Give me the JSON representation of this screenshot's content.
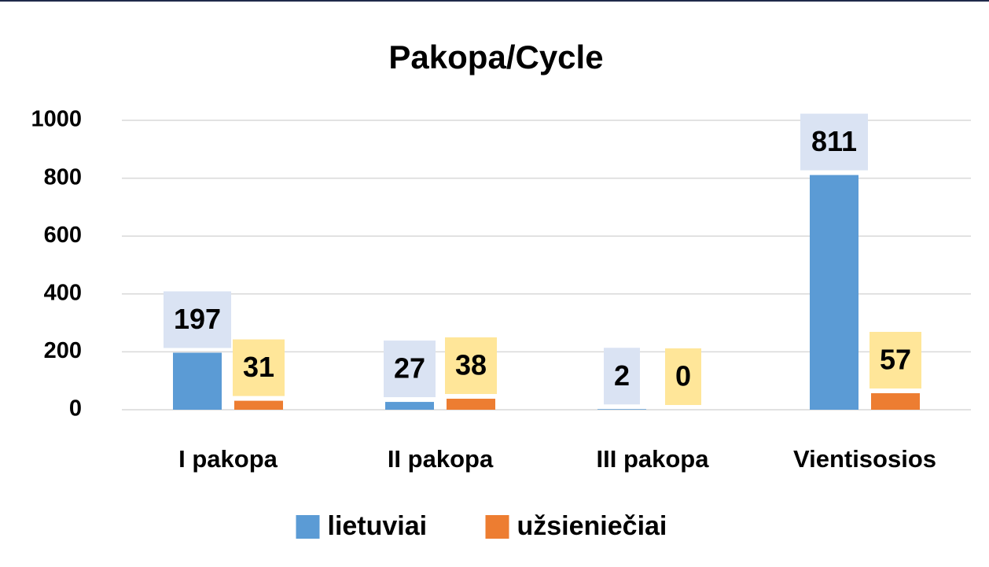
{
  "chart_data": {
    "type": "bar",
    "title": "Pakopa/Cycle",
    "categories": [
      "I pakopa",
      "II pakopa",
      "III pakopa",
      "Vientisosios"
    ],
    "series": [
      {
        "name": "lietuviai",
        "color": "#5b9bd5",
        "label_bg": "#dae3f3",
        "values": [
          197,
          27,
          2,
          811
        ]
      },
      {
        "name": "užsieniečiai",
        "color": "#ed7d31",
        "label_bg": "#ffe699",
        "values": [
          31,
          38,
          0,
          57
        ]
      }
    ],
    "ylim": [
      0,
      1000
    ],
    "yticks": [
      0,
      200,
      400,
      600,
      800,
      1000
    ],
    "grid": true,
    "legend": "bottom"
  }
}
